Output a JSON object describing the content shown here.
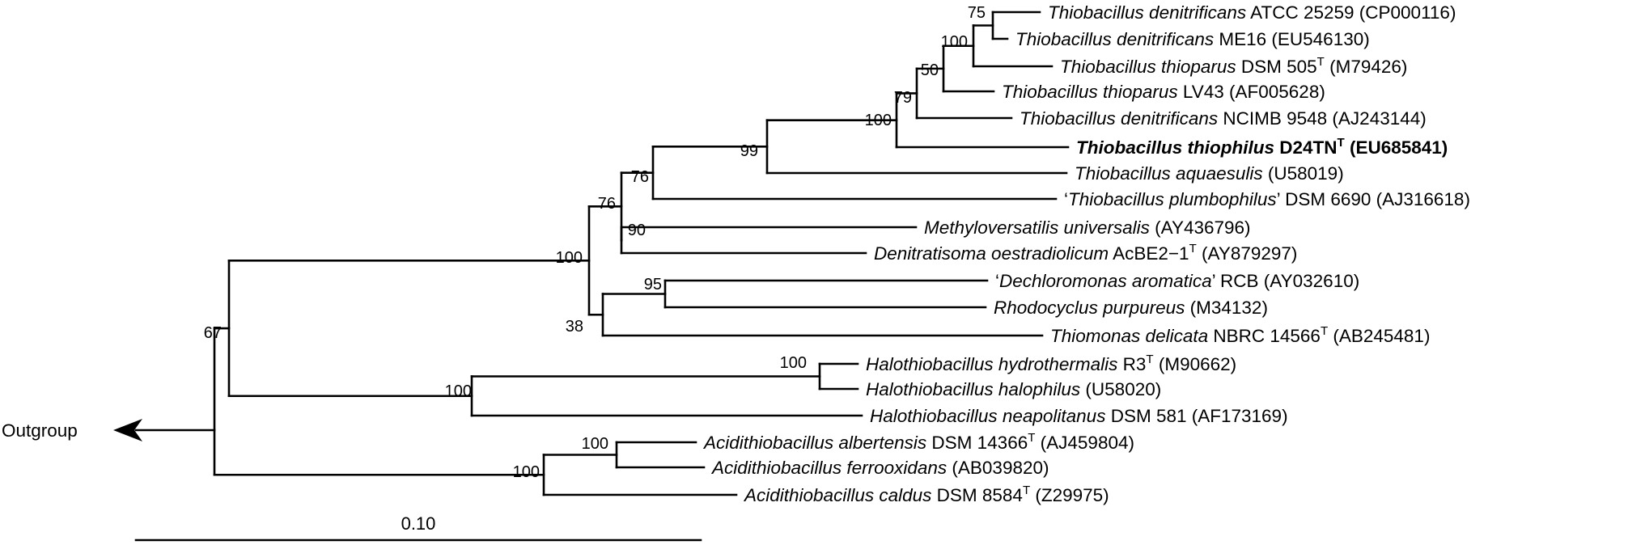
{
  "outgroup_label": "Outgroup",
  "scale_label": "0.10",
  "taxa": [
    {
      "name": "Thiobacillus denitrificans",
      "rest": "ATCC 25259 (CP000116)"
    },
    {
      "name": "Thiobacillus denitrificans",
      "rest": "ME16 (EU546130)"
    },
    {
      "name": "Thiobacillus thioparus",
      "rest": "DSM 505",
      "sup": "T",
      "post": "(M79426)"
    },
    {
      "name": "Thiobacillus thioparus",
      "rest": "LV43 (AF005628)"
    },
    {
      "name": "Thiobacillus denitrificans",
      "rest": "NCIMB 9548 (AJ243144)"
    },
    {
      "name": "Thiobacillus thiophilus",
      "rest": "D24TN",
      "sup": "T",
      "post": "(EU685841)",
      "bold": true
    },
    {
      "name": "Thiobacillus aquaesulis",
      "rest": "(U58019)"
    },
    {
      "pre": "‘",
      "name": "Thiobacillus plumbophilus",
      "mid": "’",
      "rest": "DSM 6690 (AJ316618)"
    },
    {
      "name": "Methyloversatilis universalis",
      "rest": "(AY436796)"
    },
    {
      "name": "Denitratisoma oestradiolicum",
      "rest": "AcBE2−1",
      "sup": "T",
      "post": "(AY879297)"
    },
    {
      "pre": "‘",
      "name": "Dechloromonas aromatica",
      "mid": "’",
      "rest": "RCB (AY032610)"
    },
    {
      "name": "Rhodocyclus purpureus",
      "rest": "(M34132)"
    },
    {
      "name": "Thiomonas delicata",
      "rest": "NBRC 14566",
      "sup": "T",
      "post": "(AB245481)"
    },
    {
      "name": "Halothiobacillus hydrothermalis",
      "rest": "R3",
      "sup": "T",
      "post": "(M90662)"
    },
    {
      "name": "Halothiobacillus halophilus",
      "rest": "(U58020)"
    },
    {
      "name": "Halothiobacillus neapolitanus",
      "rest": "DSM 581 (AF173169)"
    },
    {
      "name": "Acidithiobacillus albertensis",
      "rest": "DSM 14366",
      "sup": "T",
      "post": "(AJ459804)"
    },
    {
      "name": "Acidithiobacillus ferrooxidans",
      "rest": "(AB039820)"
    },
    {
      "name": "Acidithiobacillus caldus",
      "rest": "DSM 8584",
      "sup": "T",
      "post": "(Z29975)"
    }
  ],
  "bootstrap": {
    "n75": "75",
    "n100a": "100",
    "n50": "50",
    "n79": "79",
    "n100b": "100",
    "n99": "99",
    "n76a": "76",
    "n76b": "76",
    "n90": "90",
    "n100c": "100",
    "n95": "95",
    "n38": "38",
    "n67": "67",
    "n100d": "100",
    "n100e": "100",
    "n100f": "100",
    "n100g": "100"
  }
}
